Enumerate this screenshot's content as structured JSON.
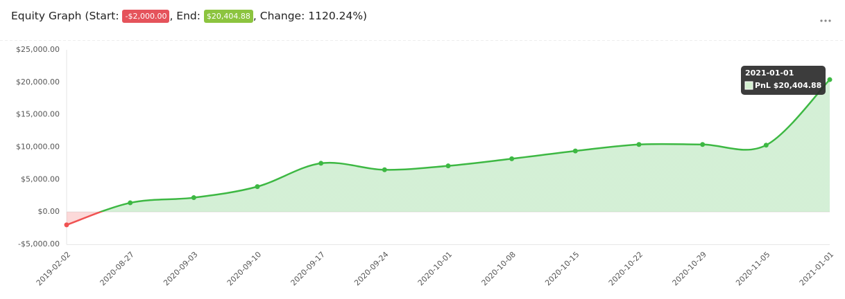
{
  "header": {
    "prefix": "Equity Graph (Start: ",
    "mid": ", End: ",
    "change": ", Change: 1120.24%)"
  },
  "chart_data": {
    "type": "line",
    "categories": [
      "2019-02-02",
      "2020-08-27",
      "2020-09-03",
      "2020-09-10",
      "2020-09-17",
      "2020-09-24",
      "2020-10-01",
      "2020-10-08",
      "2020-10-15",
      "2020-10-22",
      "2020-10-29",
      "2020-11-05",
      "2021-01-01"
    ],
    "series": [
      {
        "name": "PnL",
        "color": "#3db843",
        "negative_color": "#f05252",
        "values": [
          -2000,
          1400,
          2200,
          3900,
          7500,
          6500,
          7100,
          8200,
          9400,
          10400,
          10400,
          10300,
          20404.88
        ],
        "value_labels": [
          "-$2,000.00",
          null,
          null,
          null,
          null,
          null,
          null,
          null,
          null,
          null,
          null,
          null,
          "$20,404.88"
        ]
      }
    ],
    "ylim": [
      -5000,
      25000
    ],
    "yticks": [
      {
        "value": -5000,
        "label": "-$5,000.00"
      },
      {
        "value": 0,
        "label": "$0.00"
      },
      {
        "value": 5000,
        "label": "$5,000.00"
      },
      {
        "value": 10000,
        "label": "$10,000.00"
      },
      {
        "value": 15000,
        "label": "$15,000.00"
      },
      {
        "value": 20000,
        "label": "$20,000.00"
      },
      {
        "value": 25000,
        "label": "$25,000.00"
      }
    ],
    "grid": false
  }
}
